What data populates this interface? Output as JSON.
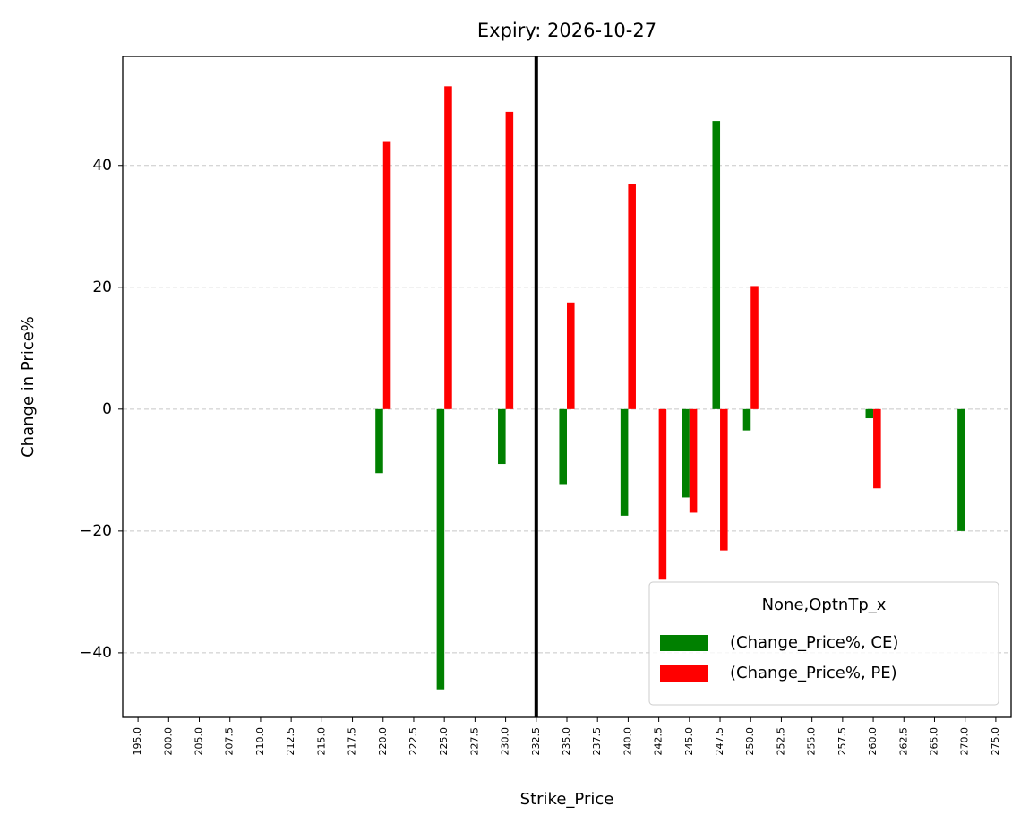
{
  "chart_data": {
    "type": "bar",
    "title": "Expiry: 2026-10-27",
    "x_label": "Strike_Price",
    "y_label": "Change in Price%",
    "categories": [
      "195.0",
      "200.0",
      "205.0",
      "207.5",
      "210.0",
      "212.5",
      "215.0",
      "217.5",
      "220.0",
      "222.5",
      "225.0",
      "227.5",
      "230.0",
      "232.5",
      "235.0",
      "237.5",
      "240.0",
      "242.5",
      "245.0",
      "247.5",
      "250.0",
      "252.5",
      "255.0",
      "257.5",
      "260.0",
      "262.5",
      "265.0",
      "270.0",
      "275.0"
    ],
    "series": [
      {
        "name": "(Change_Price%, CE)",
        "color": "#008000",
        "values": [
          null,
          null,
          null,
          null,
          null,
          null,
          null,
          null,
          -10.5,
          null,
          -46,
          null,
          -9,
          null,
          -12.3,
          null,
          -17.5,
          null,
          -14.5,
          47.3,
          -3.5,
          null,
          null,
          null,
          -1.5,
          null,
          null,
          -20,
          null
        ]
      },
      {
        "name": "(Change_Price%, PE)",
        "color": "#ff0000",
        "values": [
          null,
          null,
          null,
          null,
          null,
          null,
          null,
          null,
          44,
          null,
          53,
          null,
          48.8,
          null,
          17.5,
          null,
          37,
          -28,
          -17,
          -23.2,
          20.2,
          null,
          null,
          null,
          -13,
          null,
          null,
          null,
          null
        ]
      }
    ],
    "legend_title": "None,OptnTp_x",
    "legend_position": "lower right",
    "vline": "232.5",
    "ylim": [
      -50.6,
      57.9
    ],
    "yticks": [
      {
        "value": -40,
        "label": "−40"
      },
      {
        "value": -20,
        "label": "−20"
      },
      0,
      20,
      40
    ],
    "grid": true
  }
}
